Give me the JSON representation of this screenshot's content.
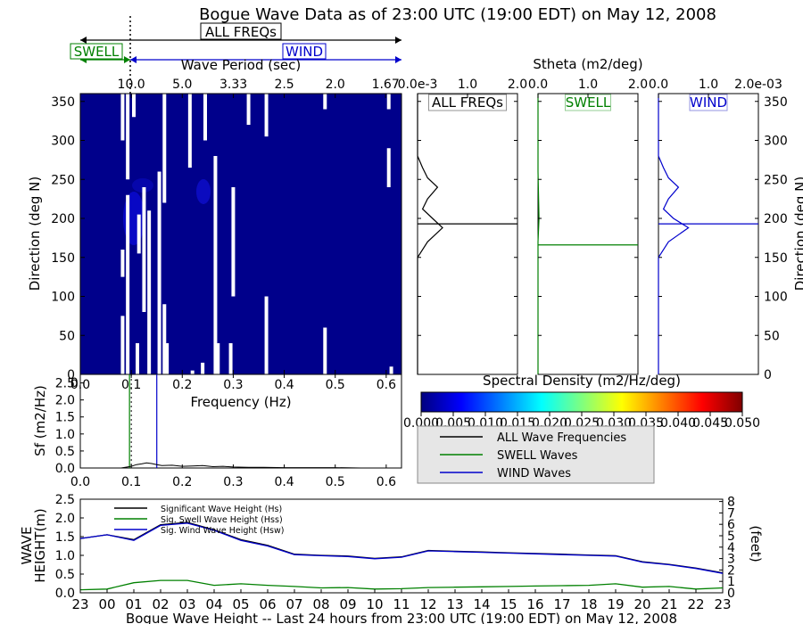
{
  "title": "Bogue Wave Data as of 23:00 UTC (19:00 EDT) on May 12, 2008",
  "band_labels": {
    "all": "ALL FREQs",
    "swell": "SWELL",
    "wind": "WIND"
  },
  "colors": {
    "swell": "#008000",
    "wind": "#0000cc",
    "all": "#000000",
    "field": "#00008b",
    "gap": "#ffffff"
  },
  "chart_data": [
    {
      "id": "direction-frequency",
      "type": "heatmap",
      "xlabel": "Frequency (Hz)",
      "ylabel": "Direction (deg N)",
      "xlim": [
        0.0,
        0.63
      ],
      "ylim": [
        0,
        360
      ],
      "xticks": [
        "0.0",
        "0.1",
        "0.2",
        "0.3",
        "0.4",
        "0.5",
        "0.6"
      ],
      "yticks": [
        "0",
        "50",
        "100",
        "150",
        "200",
        "250",
        "300",
        "350"
      ],
      "period_axis_label": "Wave Period (sec)",
      "period_ticks": [
        "10.0",
        "5.0",
        "3.33",
        "2.5",
        "2.0",
        "1.67"
      ],
      "swell_cutoff_hz": 0.1,
      "white_bands": [
        {
          "f": 0.083,
          "d0": 0,
          "d1": 75
        },
        {
          "f": 0.083,
          "d0": 125,
          "d1": 160
        },
        {
          "f": 0.083,
          "d0": 300,
          "d1": 360
        },
        {
          "f": 0.093,
          "d0": 250,
          "d1": 360
        },
        {
          "f": 0.093,
          "d0": 0,
          "d1": 230
        },
        {
          "f": 0.105,
          "d0": 330,
          "d1": 360
        },
        {
          "f": 0.112,
          "d0": 0,
          "d1": 40
        },
        {
          "f": 0.115,
          "d0": 155,
          "d1": 205
        },
        {
          "f": 0.125,
          "d0": 80,
          "d1": 240
        },
        {
          "f": 0.135,
          "d0": 0,
          "d1": 210
        },
        {
          "f": 0.155,
          "d0": 0,
          "d1": 260
        },
        {
          "f": 0.165,
          "d0": 0,
          "d1": 90
        },
        {
          "f": 0.165,
          "d0": 220,
          "d1": 360
        },
        {
          "f": 0.17,
          "d0": 0,
          "d1": 40
        },
        {
          "f": 0.215,
          "d0": 265,
          "d1": 360
        },
        {
          "f": 0.22,
          "d0": 0,
          "d1": 5
        },
        {
          "f": 0.24,
          "d0": 0,
          "d1": 15
        },
        {
          "f": 0.245,
          "d0": 300,
          "d1": 360
        },
        {
          "f": 0.265,
          "d0": 0,
          "d1": 280
        },
        {
          "f": 0.27,
          "d0": 0,
          "d1": 40
        },
        {
          "f": 0.295,
          "d0": 0,
          "d1": 40
        },
        {
          "f": 0.3,
          "d0": 100,
          "d1": 240
        },
        {
          "f": 0.33,
          "d0": 320,
          "d1": 360
        },
        {
          "f": 0.365,
          "d0": 0,
          "d1": 100
        },
        {
          "f": 0.365,
          "d0": 305,
          "d1": 360
        },
        {
          "f": 0.48,
          "d0": 0,
          "d1": 60
        },
        {
          "f": 0.48,
          "d0": 340,
          "d1": 360
        },
        {
          "f": 0.605,
          "d0": 340,
          "d1": 360
        },
        {
          "f": 0.605,
          "d0": 240,
          "d1": 290
        },
        {
          "f": 0.61,
          "d0": 0,
          "d1": 10
        }
      ]
    },
    {
      "id": "stheta-all",
      "type": "line",
      "panel_label": "ALL FREQs",
      "xlim": [
        0,
        2.0
      ],
      "xticks": [
        "0.0e-3",
        "1.0",
        "2.0"
      ],
      "ylim": [
        0,
        360
      ],
      "mean_direction": 193,
      "points": [
        [
          0,
          0
        ],
        [
          0,
          150
        ],
        [
          0.2,
          170
        ],
        [
          0.5,
          188
        ],
        [
          0.3,
          200
        ],
        [
          0.1,
          212
        ],
        [
          0.2,
          225
        ],
        [
          0.4,
          240
        ],
        [
          0.2,
          252
        ],
        [
          0.1,
          265
        ],
        [
          0,
          280
        ],
        [
          0,
          360
        ]
      ]
    },
    {
      "id": "stheta-swell",
      "type": "line",
      "panel_label": "SWELL",
      "xlim": [
        0,
        2.0
      ],
      "xticks": [
        "0.0",
        "1.0",
        "2.0"
      ],
      "xlabel": "Stheta (m2/deg)",
      "ylim": [
        0,
        360
      ],
      "mean_direction": 166,
      "points": [
        [
          0,
          0
        ],
        [
          0,
          170
        ],
        [
          0.02,
          200
        ],
        [
          0,
          260
        ],
        [
          0,
          360
        ]
      ]
    },
    {
      "id": "stheta-wind",
      "type": "line",
      "panel_label": "WIND",
      "xlim": [
        0,
        0.002
      ],
      "xticks": [
        "0.0",
        "1.0",
        "2.0e-03"
      ],
      "ylabel": "Direction (deg N)",
      "yticks": [
        "0",
        "50",
        "100",
        "150",
        "200",
        "250",
        "300",
        "350"
      ],
      "ylim": [
        0,
        360
      ],
      "mean_direction": 193,
      "points": [
        [
          0,
          0
        ],
        [
          0,
          150
        ],
        [
          0.0002,
          170
        ],
        [
          0.0006,
          188
        ],
        [
          0.0003,
          200
        ],
        [
          0.0001,
          212
        ],
        [
          0.0002,
          225
        ],
        [
          0.0004,
          240
        ],
        [
          0.0002,
          252
        ],
        [
          0.0001,
          265
        ],
        [
          0,
          280
        ],
        [
          0,
          360
        ]
      ]
    },
    {
      "id": "frequency-spectrum",
      "type": "line",
      "xlabel": "Frequency (Hz)",
      "ylabel": "Sf (m2/Hz)",
      "xlim": [
        0.0,
        0.63
      ],
      "ylim": [
        0.0,
        2.75
      ],
      "xticks": [
        "0.0",
        "0.1",
        "0.2",
        "0.3",
        "0.4",
        "0.5",
        "0.6"
      ],
      "yticks": [
        "0.0",
        "0.5",
        "1.0",
        "1.5",
        "2.0",
        "2.5"
      ],
      "swell_cutoff_hz": 0.1,
      "wind_marker_hz": 0.15,
      "x": [
        0.08,
        0.1,
        0.11,
        0.12,
        0.13,
        0.14,
        0.15,
        0.16,
        0.18,
        0.2,
        0.22,
        0.24,
        0.26,
        0.28,
        0.3,
        0.33,
        0.36,
        0.4,
        0.45,
        0.5,
        0.55,
        0.6,
        0.63
      ],
      "y": [
        0.0,
        0.05,
        0.1,
        0.12,
        0.15,
        0.13,
        0.1,
        0.07,
        0.08,
        0.05,
        0.06,
        0.07,
        0.04,
        0.05,
        0.03,
        0.02,
        0.02,
        0.01,
        0.01,
        0.01,
        0.0,
        0.0,
        0.0
      ]
    },
    {
      "id": "colorbar",
      "type": "heatmap",
      "title": "Spectral Density (m2/Hz/deg)",
      "range": [
        0.0,
        0.05
      ],
      "ticks": [
        "0.000",
        "0.005",
        "0.010",
        "0.015",
        "0.020",
        "0.025",
        "0.030",
        "0.035",
        "0.040",
        "0.045",
        "0.050"
      ],
      "stops": [
        "#00007f",
        "#0000ff",
        "#007fff",
        "#00ffff",
        "#7fff7f",
        "#ffff00",
        "#ff7f00",
        "#ff0000",
        "#7f0000"
      ]
    },
    {
      "id": "wave-height-history",
      "type": "line",
      "xlabel": "Bogue Wave Height -- Last 24 hours from 23:00 UTC (19:00 EDT) on May 12, 2008",
      "ylabel": "WAVE HEIGHT(m)",
      "ylabel_right": "(feet)",
      "categories": [
        "23",
        "00",
        "01",
        "02",
        "03",
        "04",
        "05",
        "06",
        "07",
        "08",
        "09",
        "10",
        "11",
        "12",
        "13",
        "14",
        "15",
        "16",
        "17",
        "18",
        "19",
        "20",
        "21",
        "22",
        "23"
      ],
      "ylim": [
        0.0,
        2.5
      ],
      "yticks": [
        "0.0",
        "0.5",
        "1.0",
        "1.5",
        "2.0",
        "2.5"
      ],
      "yticks_right": [
        "0",
        "1",
        "2",
        "3",
        "4",
        "5",
        "6",
        "7",
        "8"
      ],
      "series": [
        {
          "name": "Significant Wave Height (Hs)",
          "color": "#000000",
          "values": [
            1.45,
            1.55,
            1.42,
            1.82,
            1.88,
            1.68,
            1.42,
            1.27,
            1.03,
            1.0,
            0.98,
            0.92,
            0.96,
            1.13,
            1.11,
            1.09,
            1.07,
            1.05,
            1.03,
            1.01,
            0.99,
            0.83,
            0.76,
            0.66,
            0.53
          ]
        },
        {
          "name": "Sig. Swell Wave Height (Hss)",
          "color": "#008000",
          "values": [
            0.08,
            0.1,
            0.27,
            0.33,
            0.33,
            0.2,
            0.24,
            0.2,
            0.17,
            0.13,
            0.14,
            0.1,
            0.11,
            0.14,
            0.15,
            0.16,
            0.17,
            0.18,
            0.19,
            0.2,
            0.24,
            0.15,
            0.17,
            0.1,
            0.13
          ]
        },
        {
          "name": "Sig. Wind Wave Height (Hsw)",
          "color": "#0000cc",
          "values": [
            1.45,
            1.55,
            1.4,
            1.8,
            1.86,
            1.67,
            1.4,
            1.25,
            1.02,
            0.99,
            0.97,
            0.91,
            0.95,
            1.12,
            1.1,
            1.08,
            1.06,
            1.04,
            1.02,
            1.0,
            0.98,
            0.82,
            0.75,
            0.65,
            0.52
          ]
        }
      ]
    }
  ],
  "legend": {
    "entries": [
      {
        "label": "ALL Wave Frequencies",
        "color": "#000000"
      },
      {
        "label": "SWELL Waves",
        "color": "#008000"
      },
      {
        "label": "WIND Waves",
        "color": "#0000cc"
      }
    ]
  }
}
